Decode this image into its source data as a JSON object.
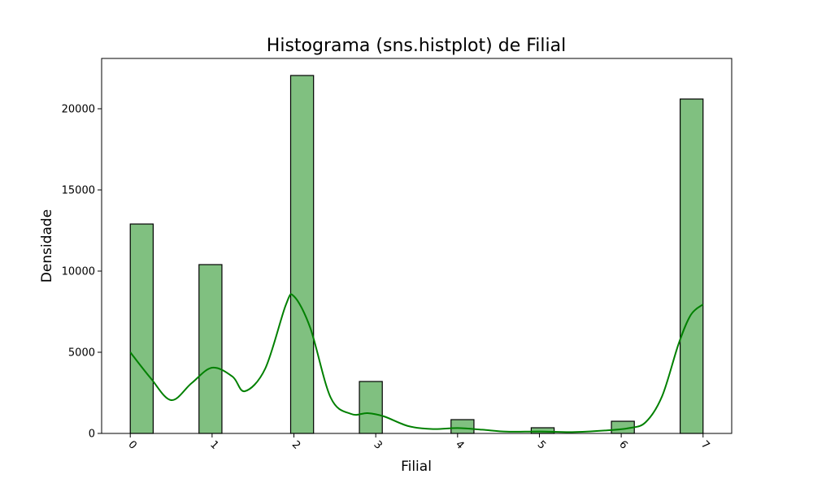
{
  "chart_data": {
    "type": "bar",
    "title": "Histograma (sns.histplot) de Filial",
    "xlabel": "Filial",
    "ylabel": "Densidade",
    "xlim": [
      -0.35,
      7.35
    ],
    "ylim": [
      0,
      23100
    ],
    "x_ticks": [
      0,
      1,
      2,
      3,
      4,
      5,
      6,
      7
    ],
    "y_ticks": [
      0,
      5000,
      10000,
      15000,
      20000
    ],
    "bar_width": 0.28,
    "bars": [
      {
        "x": 0.14,
        "value": 12900
      },
      {
        "x": 0.98,
        "value": 10400
      },
      {
        "x": 2.1,
        "value": 22050
      },
      {
        "x": 2.94,
        "value": 3200
      },
      {
        "x": 4.06,
        "value": 850
      },
      {
        "x": 5.04,
        "value": 350
      },
      {
        "x": 6.02,
        "value": 750
      },
      {
        "x": 6.86,
        "value": 20600
      }
    ],
    "kde": {
      "x": [
        0,
        0.25,
        0.5,
        0.75,
        1.0,
        1.25,
        1.4,
        1.65,
        1.9,
        2.0,
        2.2,
        2.45,
        2.7,
        2.9,
        3.1,
        3.4,
        3.7,
        4.0,
        4.3,
        4.6,
        5.0,
        5.4,
        5.8,
        6.1,
        6.3,
        6.5,
        6.7,
        6.85,
        7.0
      ],
      "y": [
        5000,
        3400,
        2050,
        3100,
        4050,
        3500,
        2600,
        4000,
        7900,
        8450,
        6500,
        2200,
        1200,
        1250,
        1050,
        450,
        270,
        330,
        230,
        110,
        120,
        80,
        180,
        330,
        700,
        2300,
        5500,
        7300,
        7950
      ]
    },
    "colors": {
      "bar_fill": "#80c080",
      "bar_edge": "#000000",
      "kde_line": "#008000"
    },
    "grid": false,
    "legend": "none"
  }
}
